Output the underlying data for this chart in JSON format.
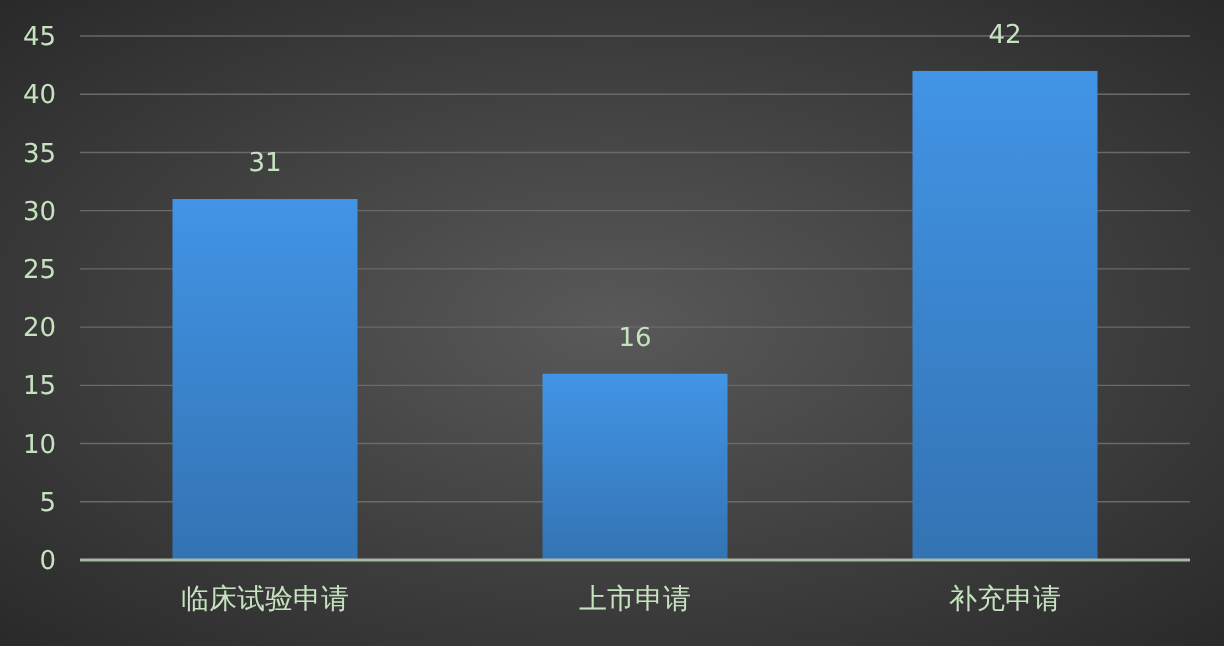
{
  "chart_data": {
    "type": "bar",
    "categories": [
      "临床试验申请",
      "上市申请",
      "补充申请"
    ],
    "values": [
      31,
      16,
      42
    ],
    "color": "#3d8ad6",
    "data_labels": true,
    "grid": "y",
    "ylim": [
      0,
      45
    ],
    "yticks": [
      0,
      5,
      10,
      15,
      20,
      25,
      30,
      35,
      40,
      45
    ]
  }
}
